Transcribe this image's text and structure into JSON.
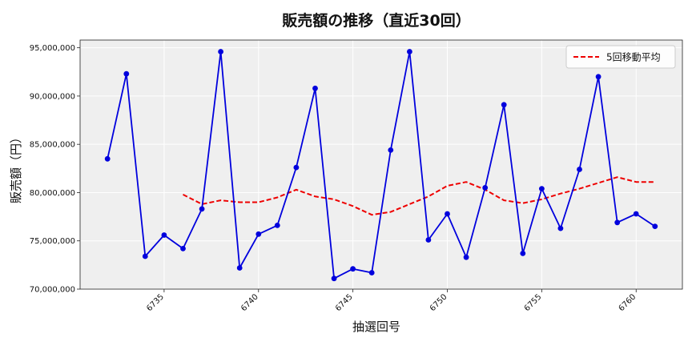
{
  "chart_data": {
    "type": "line",
    "title": "販売額の推移（直近30回）",
    "xlabel": "抽選回号",
    "ylabel": "販売額（円）",
    "x": [
      6732,
      6733,
      6734,
      6735,
      6736,
      6737,
      6738,
      6739,
      6740,
      6741,
      6742,
      6743,
      6744,
      6745,
      6746,
      6747,
      6748,
      6749,
      6750,
      6751,
      6752,
      6753,
      6754,
      6755,
      6756,
      6757,
      6758,
      6759,
      6760,
      6761
    ],
    "series": [
      {
        "values": [
          83500000,
          92300000,
          73400000,
          75600000,
          74200000,
          78300000,
          94600000,
          72200000,
          75700000,
          76600000,
          82600000,
          90800000,
          71100000,
          72100000,
          71700000,
          84400000,
          94600000,
          75100000,
          77800000,
          73300000,
          80500000,
          89100000,
          73700000,
          80400000,
          76300000,
          82400000,
          92000000,
          76900000,
          77800000,
          76500000
        ],
        "color": "#0000dd",
        "marker": "circle"
      },
      {
        "name": "5回移動平均",
        "values": [
          null,
          null,
          null,
          null,
          79800000,
          78800000,
          79200000,
          79000000,
          79000000,
          79500000,
          80300000,
          79600000,
          79300000,
          78600000,
          77700000,
          78000000,
          78800000,
          79600000,
          80700000,
          81100000,
          80300000,
          79200000,
          78900000,
          79300000,
          79900000,
          80400000,
          81000000,
          81600000,
          81100000,
          81100000
        ],
        "color": "#ee0000",
        "dash": "dashed"
      }
    ],
    "xticks": [
      6735,
      6740,
      6745,
      6750,
      6755,
      6760
    ],
    "xtick_labels": [
      "6735",
      "6740",
      "6745",
      "6750",
      "6755",
      "6760"
    ],
    "yticks": [
      70000000,
      75000000,
      80000000,
      85000000,
      90000000,
      95000000
    ],
    "ytick_labels": [
      "70,000,000",
      "75,000,000",
      "80,000,000",
      "85,000,000",
      "90,000,000",
      "95,000,000"
    ],
    "xlim": [
      6730.55,
      6762.45
    ],
    "ylim": [
      70000000,
      95800000
    ],
    "grid": true,
    "legend_position": "top-right",
    "background_color": "#efefef"
  }
}
